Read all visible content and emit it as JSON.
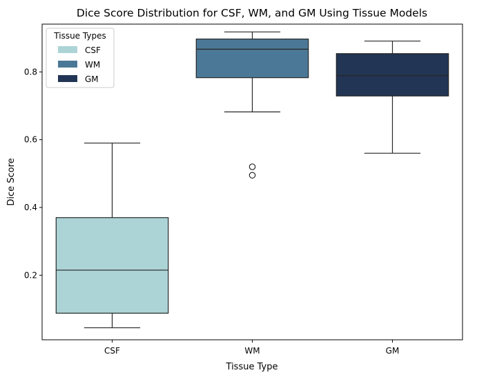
{
  "chart_data": {
    "type": "boxplot",
    "title": "Dice Score Distribution for CSF, WM, and GM Using Tissue Models",
    "xlabel": "Tissue Type",
    "ylabel": "Dice Score",
    "categories": [
      "CSF",
      "WM",
      "GM"
    ],
    "yticks": [
      "0.2",
      "0.4",
      "0.6",
      "0.8"
    ],
    "ylim": [
      0.0095,
      0.941
    ],
    "grid": false,
    "legend": {
      "title": "Tissue Types",
      "placement": "top-left",
      "entries": [
        {
          "label": "CSF",
          "color": "#acd4d7"
        },
        {
          "label": "WM",
          "color": "#4b7896"
        },
        {
          "label": "GM",
          "color": "#223555"
        }
      ]
    },
    "series": [
      {
        "category": "CSF",
        "whisker_low": 0.045,
        "q1": 0.088,
        "median": 0.215,
        "q3": 0.37,
        "whisker_high": 0.59,
        "outliers": [],
        "color": "#acd4d7"
      },
      {
        "category": "WM",
        "whisker_low": 0.682,
        "q1": 0.783,
        "median": 0.867,
        "q3": 0.897,
        "whisker_high": 0.918,
        "outliers": [
          0.52,
          0.495
        ],
        "color": "#4b7896"
      },
      {
        "category": "GM",
        "whisker_low": 0.56,
        "q1": 0.729,
        "median": 0.789,
        "q3": 0.854,
        "whisker_high": 0.891,
        "outliers": [],
        "color": "#223555"
      }
    ]
  }
}
